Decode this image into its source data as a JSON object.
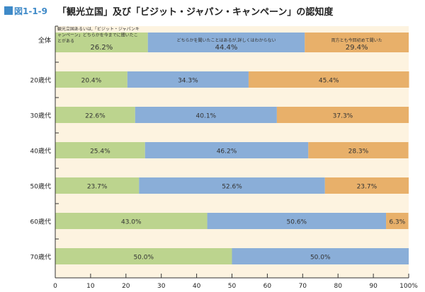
{
  "header": {
    "fig_number": "図1-1-9",
    "title": "「観光立国」及び「ビジット・ジャパン・キャンペーン」の認知度"
  },
  "colors": {
    "title_square": "#3f8ac8",
    "both_or_either": "#bcd48e",
    "heard_not_detail": "#8aaed8",
    "first_time": "#e8b06a",
    "plot_background": "#fdf3e0"
  },
  "chart_data": {
    "type": "bar",
    "orientation": "horizontal",
    "stacked": true,
    "title": "「観光立国」及び「ビジット・ジャパン・キャンペーン」の認知度",
    "categories": [
      "全体",
      "20歳代",
      "30歳代",
      "40歳代",
      "50歳代",
      "60歳代",
      "70歳代"
    ],
    "series": [
      {
        "name": "観光立国あるいは,「ビジット・ジャパンキャンペーン」どちらかを今までに聞いたことがある",
        "color": "#bcd48e",
        "values": [
          26.2,
          20.4,
          22.6,
          25.4,
          23.7,
          43.0,
          50.0
        ],
        "labels": [
          "26.2%",
          "20.4%",
          "22.6%",
          "25.4%",
          "23.7%",
          "43.0%",
          "50.0%"
        ]
      },
      {
        "name": "どちらかを聞いたことはあるが,詳しくはわからない",
        "color": "#8aaed8",
        "values": [
          44.4,
          34.3,
          40.1,
          46.2,
          52.6,
          50.6,
          50.0
        ],
        "labels": [
          "44.4%",
          "34.3%",
          "40.1%",
          "46.2%",
          "52.6%",
          "50.6%",
          "50.0%"
        ]
      },
      {
        "name": "両方とも今回初めて聞いた",
        "color": "#e8b06a",
        "values": [
          29.4,
          45.4,
          37.3,
          28.3,
          23.7,
          6.3,
          0
        ],
        "labels": [
          "29.4%",
          "45.4%",
          "37.3%",
          "28.3%",
          "23.7%",
          "6.3%",
          ""
        ]
      }
    ],
    "inline_series_labels": {
      "series_0_lines": [
        "観光立国あるいは,「ビジット・ジャパンキ",
        "ャンペーン」どちらかを今までに聞いたこ",
        "とがある"
      ],
      "series_1_lines": [
        "どちらかを聞いたことはあるが,詳しくはわからない"
      ],
      "series_2_lines": [
        "両方とも今回初めて聞いた"
      ]
    },
    "xlim": [
      0,
      100
    ],
    "xticks": [
      0,
      10,
      20,
      30,
      40,
      50,
      60,
      70,
      80,
      90,
      100
    ],
    "xtick_labels": [
      "0",
      "10",
      "20",
      "30",
      "40",
      "50",
      "60",
      "70",
      "80",
      "90",
      "100%"
    ],
    "xlabel": "",
    "ylabel": "",
    "grid": false,
    "legend": "inline-first-bar"
  }
}
